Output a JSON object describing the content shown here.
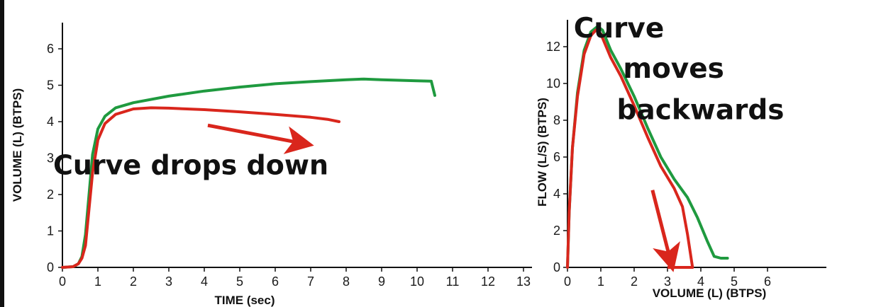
{
  "colors": {
    "green": "#1f9a3f",
    "red": "#d9261c",
    "axis": "#111111",
    "frame": "#111111"
  },
  "chart_data": [
    {
      "type": "line",
      "title": "",
      "xlabel": "TIME (sec)",
      "ylabel": "VOLUME (L) (BTPS)",
      "xlim": [
        0,
        13
      ],
      "ylim": [
        0,
        6
      ],
      "x_ticks": [
        0,
        1,
        2,
        3,
        4,
        5,
        6,
        7,
        8,
        9,
        10,
        11,
        12,
        13
      ],
      "y_ticks": [
        0,
        1,
        2,
        3,
        4,
        5,
        6
      ],
      "grid": false,
      "series": [
        {
          "color": "green",
          "points": [
            [
              0,
              0
            ],
            [
              0.3,
              0.02
            ],
            [
              0.45,
              0.1
            ],
            [
              0.55,
              0.3
            ],
            [
              0.65,
              0.9
            ],
            [
              0.75,
              2.0
            ],
            [
              0.85,
              3.1
            ],
            [
              1.0,
              3.8
            ],
            [
              1.2,
              4.15
            ],
            [
              1.5,
              4.38
            ],
            [
              2.0,
              4.52
            ],
            [
              3.0,
              4.7
            ],
            [
              4.0,
              4.84
            ],
            [
              5.0,
              4.95
            ],
            [
              6.0,
              5.04
            ],
            [
              7.0,
              5.1
            ],
            [
              8.0,
              5.15
            ],
            [
              8.5,
              5.17
            ],
            [
              9.0,
              5.15
            ],
            [
              10.0,
              5.12
            ],
            [
              10.4,
              5.11
            ],
            [
              10.5,
              4.72
            ]
          ]
        },
        {
          "color": "red",
          "points": [
            [
              0,
              0
            ],
            [
              0.3,
              0.02
            ],
            [
              0.45,
              0.1
            ],
            [
              0.55,
              0.25
            ],
            [
              0.65,
              0.6
            ],
            [
              0.75,
              1.6
            ],
            [
              0.85,
              2.6
            ],
            [
              1.0,
              3.5
            ],
            [
              1.2,
              3.95
            ],
            [
              1.5,
              4.2
            ],
            [
              2.0,
              4.35
            ],
            [
              2.5,
              4.38
            ],
            [
              3.0,
              4.37
            ],
            [
              4.0,
              4.33
            ],
            [
              5.0,
              4.27
            ],
            [
              6.0,
              4.2
            ],
            [
              7.0,
              4.12
            ],
            [
              7.5,
              4.06
            ],
            [
              7.8,
              4.0
            ]
          ]
        }
      ],
      "annotations": [
        {
          "text": "Curve drops down",
          "x": 7.5,
          "y": 2.55,
          "font_size": 38
        }
      ],
      "arrows": [
        {
          "color": "red",
          "from": [
            4.1,
            3.9
          ],
          "to": [
            6.8,
            3.4
          ]
        }
      ]
    },
    {
      "type": "line",
      "title": "",
      "xlabel": "VOLUME (L) (BTPS)",
      "ylabel": "FLOW (L/S) (BTPS)",
      "xlim": [
        0,
        6.5
      ],
      "ylim": [
        0,
        13.5
      ],
      "x_ticks": [
        0,
        1,
        2,
        3,
        4,
        5,
        6
      ],
      "y_ticks": [
        0,
        2,
        4,
        6,
        8,
        10,
        12
      ],
      "grid": false,
      "series": [
        {
          "color": "green",
          "points": [
            [
              0,
              0
            ],
            [
              0.05,
              3
            ],
            [
              0.15,
              6.5
            ],
            [
              0.3,
              9.5
            ],
            [
              0.5,
              11.8
            ],
            [
              0.7,
              12.8
            ],
            [
              0.9,
              13.1
            ],
            [
              1.05,
              12.9
            ],
            [
              1.3,
              11.8
            ],
            [
              1.6,
              10.8
            ],
            [
              2.0,
              9.3
            ],
            [
              2.4,
              7.6
            ],
            [
              2.8,
              6.0
            ],
            [
              3.2,
              4.8
            ],
            [
              3.6,
              3.8
            ],
            [
              3.9,
              2.7
            ],
            [
              4.2,
              1.4
            ],
            [
              4.4,
              0.6
            ],
            [
              4.6,
              0.5
            ],
            [
              4.8,
              0.5
            ]
          ]
        },
        {
          "color": "red",
          "points": [
            [
              0,
              0
            ],
            [
              0.05,
              3
            ],
            [
              0.15,
              6.5
            ],
            [
              0.3,
              9.3
            ],
            [
              0.5,
              11.6
            ],
            [
              0.7,
              12.6
            ],
            [
              0.85,
              12.9
            ],
            [
              1.0,
              12.7
            ],
            [
              1.3,
              11.4
            ],
            [
              1.6,
              10.4
            ],
            [
              2.0,
              8.8
            ],
            [
              2.4,
              7.1
            ],
            [
              2.8,
              5.5
            ],
            [
              3.2,
              4.3
            ],
            [
              3.45,
              3.3
            ],
            [
              3.6,
              1.8
            ],
            [
              3.75,
              0
            ]
          ]
        }
      ],
      "red_baseline": {
        "from": 3.0,
        "to": 3.75,
        "y": 0
      },
      "annotations": [
        {
          "text": "Curve",
          "x": 2.9,
          "y": 12.5,
          "font_size": 39
        },
        {
          "text": "moves",
          "x": 4.7,
          "y": 10.3,
          "font_size": 39
        },
        {
          "text": "backwards",
          "x": 6.5,
          "y": 8.05,
          "font_size": 39
        }
      ],
      "arrows": [
        {
          "color": "red",
          "from": [
            2.55,
            4.2
          ],
          "to": [
            3.1,
            0.3
          ]
        }
      ]
    }
  ]
}
